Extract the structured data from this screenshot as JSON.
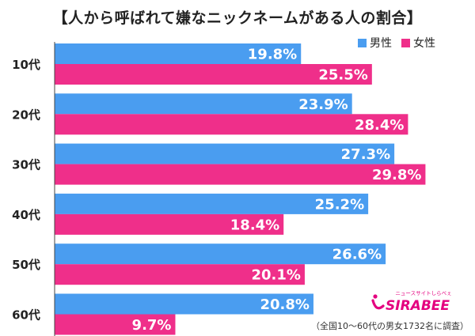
{
  "title": "【人から呼ばれて嫌なニックネームがある人の割合】",
  "footnote": "（全国10〜60代の男女1732名に調査）",
  "logo": {
    "tagline": "ニュースサイトしらべぇ",
    "name": "SIRABEE"
  },
  "colors": {
    "male": "#4a9df0",
    "female": "#ef2f8a",
    "label": "#ffffff",
    "axis": "#444444"
  },
  "chart_data": {
    "type": "bar",
    "orientation": "horizontal",
    "categories": [
      "10代",
      "20代",
      "30代",
      "40代",
      "50代",
      "60代"
    ],
    "series": [
      {
        "name": "男性",
        "values": [
          19.8,
          23.9,
          27.3,
          25.2,
          26.6,
          20.8
        ]
      },
      {
        "name": "女性",
        "values": [
          25.5,
          28.4,
          29.8,
          18.4,
          20.1,
          9.7
        ]
      }
    ],
    "value_suffix": "%",
    "xlim": [
      0,
      32
    ],
    "legend": "top-right",
    "grid": false
  }
}
